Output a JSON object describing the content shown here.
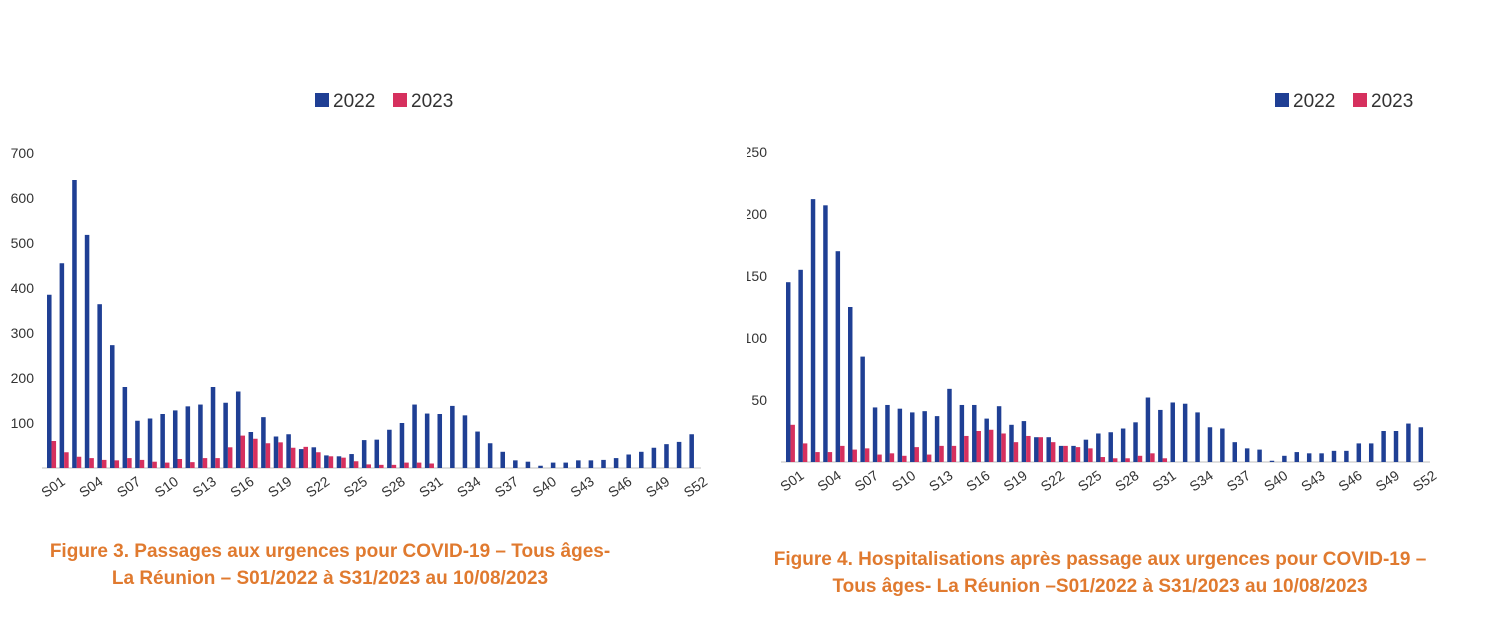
{
  "colors": {
    "y2022": "#1f3f94",
    "y2023": "#d6305e",
    "axis": "#bfbfbf",
    "text": "#333333",
    "caption": "#e07a2f"
  },
  "figures": [
    {
      "caption_line1": "Figure 3. Passages aux urgences pour COVID-19 – Tous âges-",
      "caption_line2": "La Réunion – S01/2022 à S31/2023 au 10/08/2023"
    },
    {
      "caption_line1": "Figure 4. Hospitalisations après passage aux urgences pour COVID-19 –",
      "caption_line2": "Tous âges- La Réunion –S01/2022 à S31/2023 au 10/08/2023"
    }
  ],
  "chart_data": [
    {
      "type": "bar",
      "legend": [
        "2022",
        "2023"
      ],
      "legend_position": "top",
      "categories": [
        "S01",
        "S02",
        "S03",
        "S04",
        "S05",
        "S06",
        "S07",
        "S08",
        "S09",
        "S10",
        "S11",
        "S12",
        "S13",
        "S14",
        "S15",
        "S16",
        "S17",
        "S18",
        "S19",
        "S20",
        "S21",
        "S22",
        "S23",
        "S24",
        "S25",
        "S26",
        "S27",
        "S28",
        "S29",
        "S30",
        "S31",
        "S32",
        "S33",
        "S34",
        "S35",
        "S36",
        "S37",
        "S38",
        "S39",
        "S40",
        "S41",
        "S42",
        "S43",
        "S44",
        "S45",
        "S46",
        "S47",
        "S48",
        "S49",
        "S50",
        "S51",
        "S52"
      ],
      "tick_labels": [
        "S01",
        "S04",
        "S07",
        "S10",
        "S13",
        "S16",
        "S19",
        "S22",
        "S25",
        "S28",
        "S31",
        "S34",
        "S37",
        "S40",
        "S43",
        "S46",
        "S49",
        "S52"
      ],
      "yticks": [
        100,
        200,
        300,
        400,
        500,
        600,
        700
      ],
      "ytick_labels": [
        "100",
        "200",
        "300",
        "400",
        "500",
        "600",
        "700"
      ],
      "ylim": [
        0,
        700
      ],
      "series": [
        {
          "name": "2022",
          "values": [
            385,
            455,
            640,
            518,
            364,
            273,
            180,
            105,
            110,
            120,
            128,
            137,
            141,
            180,
            145,
            170,
            80,
            113,
            70,
            75,
            42,
            46,
            28,
            26,
            31,
            62,
            63,
            85,
            100,
            141,
            121,
            120,
            138,
            117,
            81,
            55,
            36,
            17,
            14,
            5,
            12,
            12,
            17,
            17,
            18,
            22,
            30,
            36,
            45,
            53,
            58,
            75
          ]
        },
        {
          "name": "2023",
          "values": [
            60,
            35,
            25,
            22,
            18,
            17,
            22,
            18,
            14,
            12,
            20,
            13,
            22,
            22,
            46,
            72,
            65,
            55,
            57,
            45,
            47,
            35,
            26,
            23,
            15,
            8,
            7,
            7,
            12,
            12,
            10,
            0,
            0,
            0,
            0,
            0,
            0,
            0,
            0,
            0,
            0,
            0,
            0,
            0,
            0,
            0,
            0,
            0,
            0,
            0,
            0,
            0
          ]
        }
      ]
    },
    {
      "type": "bar",
      "legend": [
        "2022",
        "2023"
      ],
      "legend_position": "top",
      "categories": [
        "S01",
        "S02",
        "S03",
        "S04",
        "S05",
        "S06",
        "S07",
        "S08",
        "S09",
        "S10",
        "S11",
        "S12",
        "S13",
        "S14",
        "S15",
        "S16",
        "S17",
        "S18",
        "S19",
        "S20",
        "S21",
        "S22",
        "S23",
        "S24",
        "S25",
        "S26",
        "S27",
        "S28",
        "S29",
        "S30",
        "S31",
        "S32",
        "S33",
        "S34",
        "S35",
        "S36",
        "S37",
        "S38",
        "S39",
        "S40",
        "S41",
        "S42",
        "S43",
        "S44",
        "S45",
        "S46",
        "S47",
        "S48",
        "S49",
        "S50",
        "S51",
        "S52"
      ],
      "tick_labels": [
        "S01",
        "S04",
        "S07",
        "S10",
        "S13",
        "S16",
        "S19",
        "S22",
        "S25",
        "S28",
        "S31",
        "S34",
        "S37",
        "S40",
        "S43",
        "S46",
        "S49",
        "S52"
      ],
      "yticks": [
        50,
        100,
        150,
        200,
        250
      ],
      "ytick_labels": [
        "50",
        "100",
        "150",
        "200",
        "250"
      ],
      "ylim": [
        0,
        250
      ],
      "series": [
        {
          "name": "2022",
          "values": [
            145,
            155,
            212,
            207,
            170,
            125,
            85,
            44,
            46,
            43,
            40,
            41,
            37,
            59,
            46,
            46,
            35,
            45,
            30,
            33,
            20,
            20,
            13,
            13,
            18,
            23,
            24,
            27,
            32,
            52,
            42,
            48,
            47,
            40,
            28,
            27,
            16,
            11,
            10,
            1,
            5,
            8,
            7,
            7,
            9,
            9,
            15,
            15,
            25,
            25,
            31,
            28
          ]
        },
        {
          "name": "2023",
          "values": [
            30,
            15,
            8,
            8,
            13,
            10,
            11,
            6,
            7,
            5,
            12,
            6,
            13,
            13,
            21,
            25,
            26,
            23,
            16,
            21,
            20,
            16,
            13,
            12,
            11,
            4,
            3,
            3,
            5,
            7,
            3,
            0,
            0,
            0,
            0,
            0,
            0,
            0,
            0,
            0,
            0,
            0,
            0,
            0,
            0,
            0,
            0,
            0,
            0,
            0,
            0,
            0
          ]
        }
      ]
    }
  ]
}
